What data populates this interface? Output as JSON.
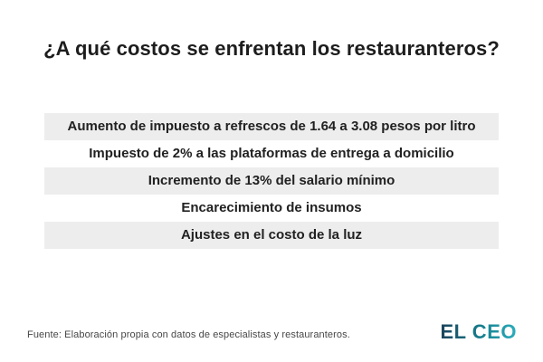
{
  "chart_data": {
    "type": "table",
    "title": "¿A qué costos se enfrentan los restauranteros?",
    "rows": [
      "Aumento de impuesto a refrescos de 1.64 a 3.08 pesos por litro",
      "Impuesto de 2% a las plataformas de entrega a domicilio",
      "Incremento de 13% del salario mínimo",
      "Encarecimiento de insumos",
      "Ajustes en el costo de la luz"
    ],
    "source": "Fuente: Elaboración propia con datos de especialistas y restauranteros.",
    "layout": {
      "row_count": 5,
      "striped": true,
      "stripe_pattern": "odd-rows-gray",
      "text_alignment": "center",
      "legend": "none",
      "grid": "off"
    }
  },
  "footer": {
    "logo_text": "EL CEO"
  },
  "colors": {
    "background": "#ffffff",
    "title_text": "#1d1d1d",
    "row_text": "#212121",
    "row_stripe": "#ededed",
    "source_text": "#474747",
    "logo_fallback": "#17808f",
    "logo_gradient_start": "#1c4159",
    "logo_gradient_mid": "#16808f",
    "logo_gradient_end": "#2cadbc"
  }
}
